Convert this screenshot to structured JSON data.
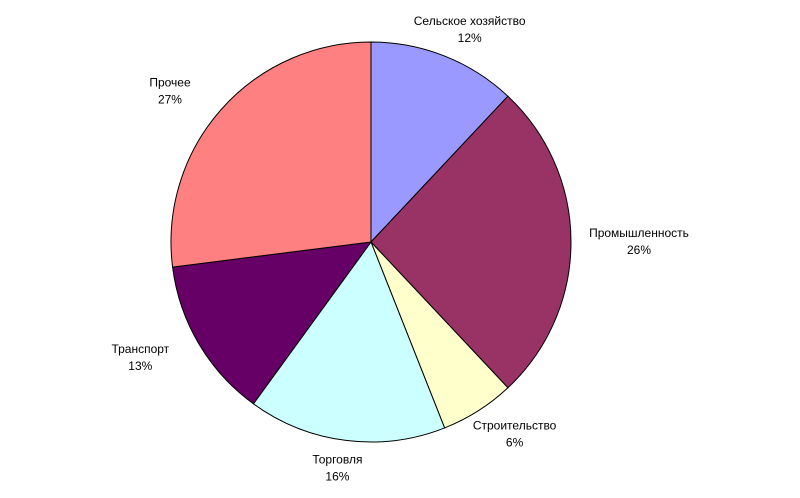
{
  "chart_data": {
    "type": "pie",
    "categories": [
      "Сельское хозяйство",
      "Промышленность",
      "Строительство",
      "Торговля",
      "Транспорт",
      "Прочее"
    ],
    "values": [
      12,
      26,
      6,
      16,
      13,
      27
    ],
    "value_labels": [
      "12%",
      "26%",
      "6%",
      "16%",
      "13%",
      "27%"
    ],
    "colors": [
      "#9999ff",
      "#993366",
      "#ffffcc",
      "#ccffff",
      "#660066",
      "#ff8080"
    ]
  }
}
